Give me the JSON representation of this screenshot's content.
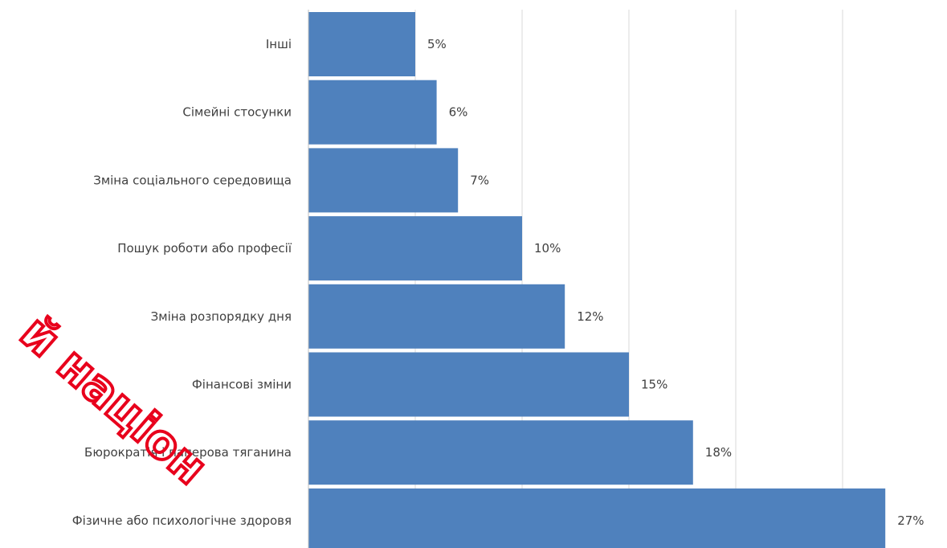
{
  "chart_data": {
    "type": "bar",
    "orientation": "horizontal",
    "categories": [
      "Інші",
      "Сімейні стосунки",
      "Зміна соціального середовища",
      "Пошук роботи або професії",
      "Зміна розпорядку дня",
      "Фінансові зміни",
      "Бюрократія і паперова тяганина",
      "Фізичне або психологічне здоровя"
    ],
    "values": [
      5,
      6,
      7,
      10,
      12,
      15,
      18,
      27
    ],
    "data_labels": [
      "5%",
      "6%",
      "7%",
      "10%",
      "12%",
      "15%",
      "18%",
      "27%"
    ],
    "xlim": [
      0,
      30
    ],
    "grid": true,
    "bar_color": "#4f81bd"
  },
  "watermark": {
    "text": "й націон",
    "color": "#e8001c"
  }
}
